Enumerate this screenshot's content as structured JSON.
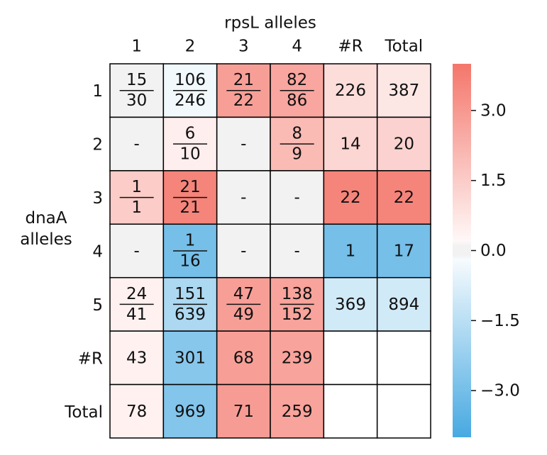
{
  "chart_data": {
    "type": "heatmap",
    "title": "rpsL alleles",
    "y_label": "dnaA\nalleles",
    "column_labels": [
      "1",
      "2",
      "3",
      "4",
      "#R",
      "Total"
    ],
    "row_labels": [
      "1",
      "2",
      "3",
      "4",
      "5",
      "#R",
      "Total"
    ],
    "cells": [
      [
        {
          "num": "15",
          "den": "30"
        },
        {
          "num": "106",
          "den": "246"
        },
        {
          "num": "21",
          "den": "22"
        },
        {
          "num": "82",
          "den": "86"
        },
        "226",
        "387"
      ],
      [
        "-",
        {
          "num": "6",
          "den": "10"
        },
        "-",
        {
          "num": "8",
          "den": "9"
        },
        "14",
        "20"
      ],
      [
        {
          "num": "1",
          "den": "1"
        },
        {
          "num": "21",
          "den": "21"
        },
        "-",
        "-",
        "22",
        "22"
      ],
      [
        "-",
        {
          "num": "1",
          "den": "16"
        },
        "-",
        "-",
        "1",
        "17"
      ],
      [
        {
          "num": "24",
          "den": "41"
        },
        {
          "num": "151",
          "den": "639"
        },
        {
          "num": "47",
          "den": "49"
        },
        {
          "num": "138",
          "den": "152"
        },
        "369",
        "894"
      ],
      [
        "43",
        "301",
        "68",
        "239",
        null,
        null
      ],
      [
        "78",
        "969",
        "71",
        "259",
        null,
        null
      ]
    ],
    "values": [
      [
        0,
        -0.3,
        2.8,
        2.6,
        1.0,
        0.7
      ],
      [
        0,
        0.5,
        0,
        2.0,
        1.2,
        1.3
      ],
      [
        1.5,
        3.6,
        0,
        0,
        3.6,
        3.6
      ],
      [
        0,
        -3.0,
        0,
        0,
        -3.0,
        -3.0
      ],
      [
        0.4,
        -1.8,
        2.8,
        2.7,
        -1.0,
        -1.0
      ],
      [
        0.4,
        -2.6,
        2.8,
        2.7,
        null,
        null
      ],
      [
        0.4,
        -2.7,
        2.9,
        2.7,
        null,
        null
      ]
    ],
    "colorbar_lim": [
      -4,
      4
    ],
    "colorbar_ticks": [
      {
        "value": 3,
        "label": "3.0"
      },
      {
        "value": 1.5,
        "label": "1.5"
      },
      {
        "value": 0,
        "label": "0.0"
      },
      {
        "value": -1.5,
        "label": "−1.5"
      },
      {
        "value": -3,
        "label": "−3.0"
      }
    ],
    "colors": {
      "low": "#47a9e1",
      "high": "#f4766b",
      "zero": "#f2f2f2"
    }
  }
}
